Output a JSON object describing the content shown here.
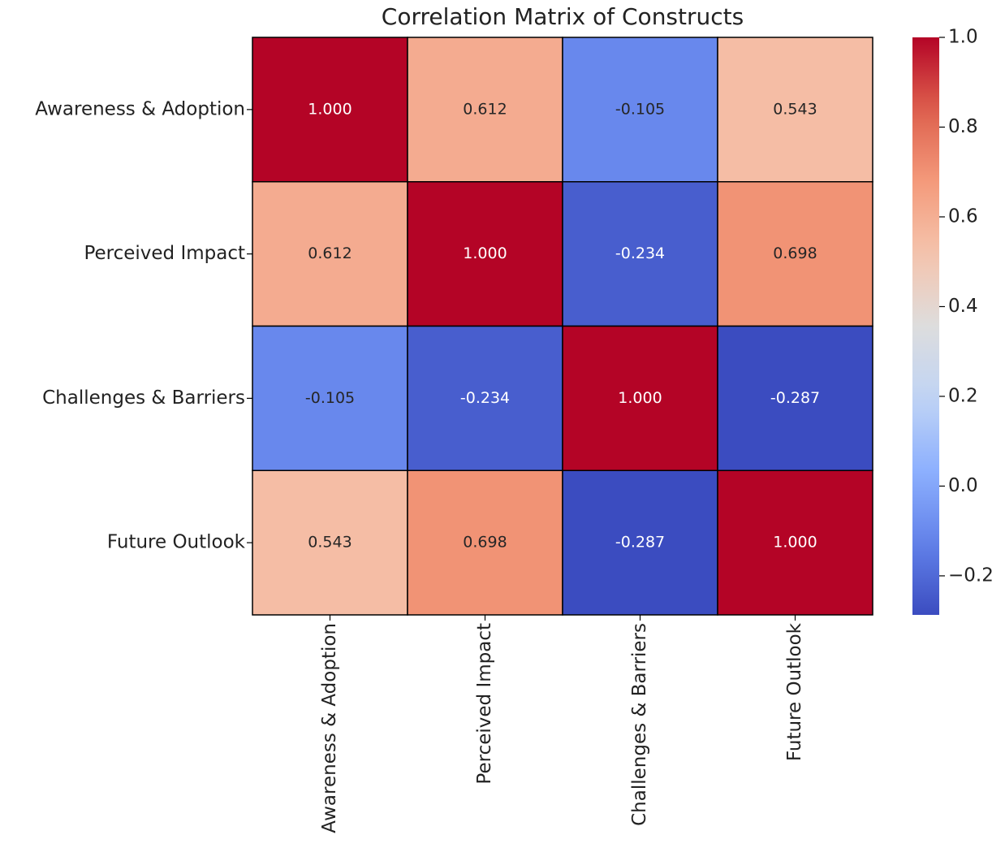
{
  "chart_data": {
    "type": "heatmap",
    "title": "Correlation Matrix of Constructs",
    "x": [
      "Awareness & Adoption",
      "Perceived Impact",
      "Challenges & Barriers",
      "Future Outlook"
    ],
    "y": [
      "Awareness & Adoption",
      "Perceived Impact",
      "Challenges & Barriers",
      "Future Outlook"
    ],
    "values": [
      [
        1.0,
        0.612,
        -0.105,
        0.543
      ],
      [
        0.612,
        1.0,
        -0.234,
        0.698
      ],
      [
        -0.105,
        -0.234,
        1.0,
        -0.287
      ],
      [
        0.543,
        0.698,
        -0.287,
        1.0
      ]
    ],
    "value_labels": [
      [
        "1.000",
        "0.612",
        "-0.105",
        "0.543"
      ],
      [
        "0.612",
        "1.000",
        "-0.234",
        "0.698"
      ],
      [
        "-0.105",
        "-0.234",
        "1.000",
        "-0.287"
      ],
      [
        "0.543",
        "0.698",
        "-0.287",
        "1.000"
      ]
    ],
    "colormap": "coolwarm",
    "zlim": [
      -0.287,
      1.0
    ],
    "zticks": [
      {
        "value": -0.2,
        "label": "−0.2"
      },
      {
        "value": 0.0,
        "label": "0.0"
      },
      {
        "value": 0.2,
        "label": "0.2"
      },
      {
        "value": 0.4,
        "label": "0.4"
      },
      {
        "value": 0.6,
        "label": "0.6"
      },
      {
        "value": 0.8,
        "label": "0.8"
      },
      {
        "value": 1.0,
        "label": "1.0"
      }
    ]
  }
}
